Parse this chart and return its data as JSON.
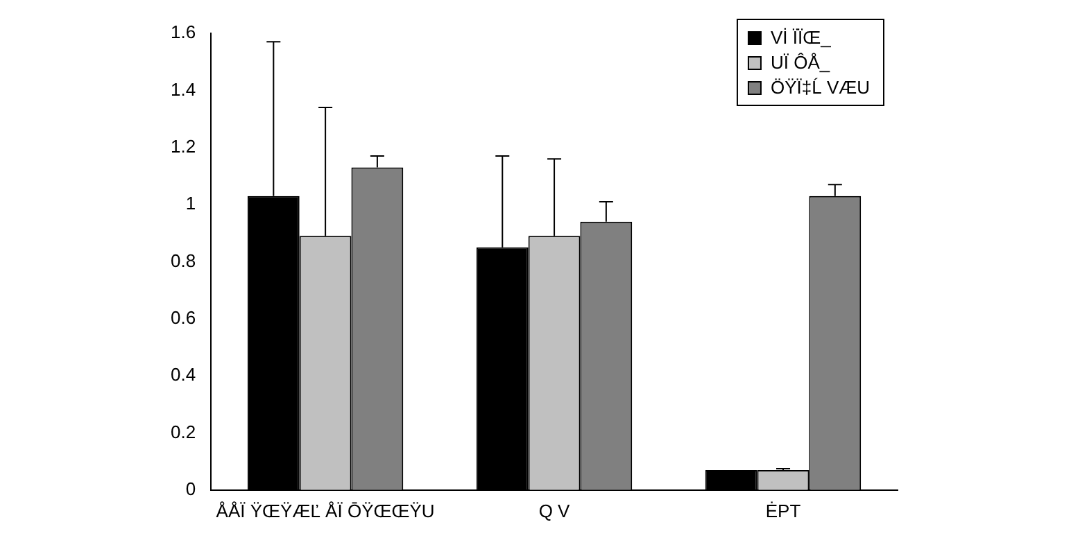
{
  "chart_data": {
    "type": "bar",
    "categories": [
      "ÅÅÏ ŸŒŸÆĽ ÅÏ ŌŸŒŒŸU",
      "Q V",
      "ĖPT"
    ],
    "series": [
      {
        "name": "Vİ ÏÏŒ_",
        "color": "#000000",
        "values": [
          1.03,
          0.85,
          0.07
        ],
        "errors": [
          [
            1.03,
            1.57
          ],
          [
            0.85,
            1.17
          ],
          null
        ]
      },
      {
        "name": "UÏ ÔÅ_",
        "color": "#c0c0c0",
        "values": [
          0.89,
          0.89,
          0.07
        ],
        "errors": [
          [
            0.89,
            1.34
          ],
          [
            0.89,
            1.16
          ],
          [
            0.07,
            0.075
          ]
        ]
      },
      {
        "name": "ÖŸÏ‡Ĺ VÆU",
        "color": "#808080",
        "values": [
          1.13,
          0.94,
          1.03
        ],
        "errors": [
          [
            1.13,
            1.17
          ],
          [
            0.94,
            1.01
          ],
          [
            1.03,
            1.07
          ]
        ]
      }
    ],
    "ylim": [
      0,
      1.6
    ],
    "yticks": [
      0,
      0.2,
      0.4,
      0.6,
      0.8,
      1,
      1.2,
      1.4,
      1.6
    ],
    "grid": false,
    "legend": "top right"
  }
}
